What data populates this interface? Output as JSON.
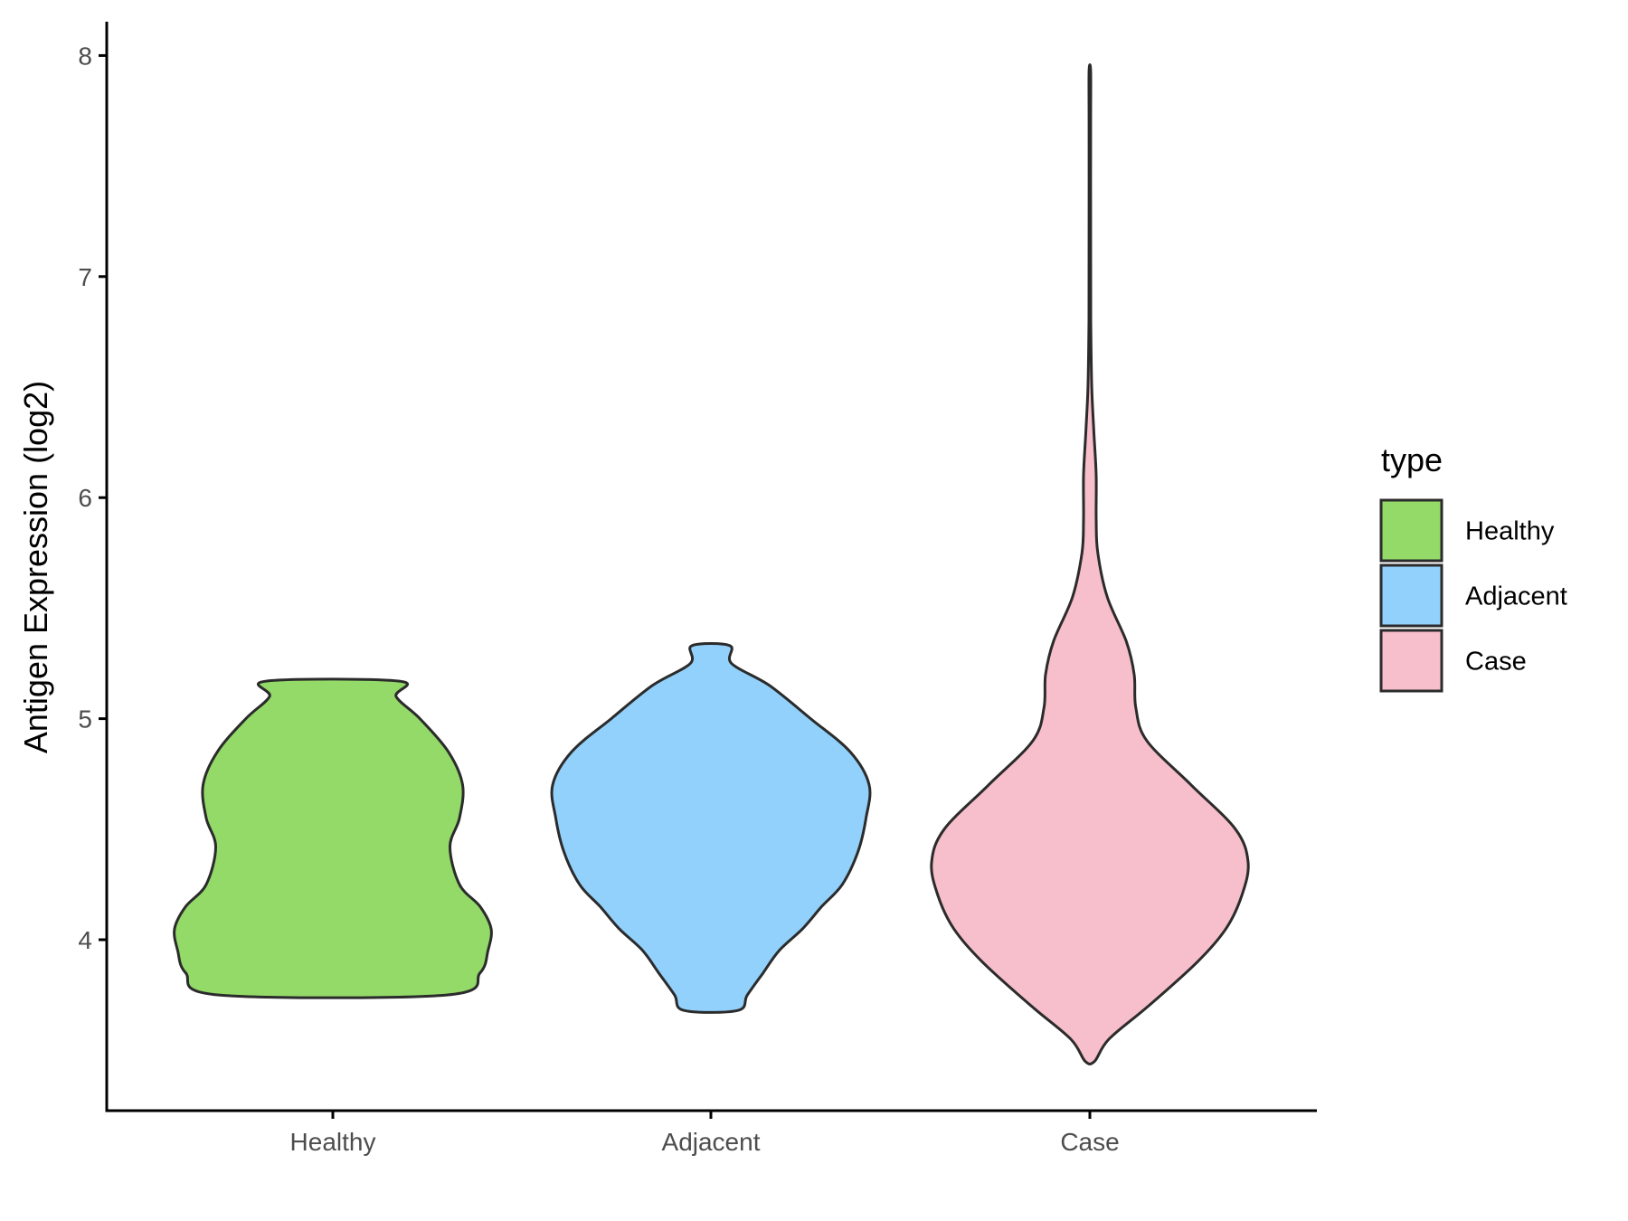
{
  "chart_data": {
    "type": "violin",
    "title": "",
    "xlabel": "",
    "ylabel": "Antigen Expression (log2)",
    "categories": [
      "Healthy",
      "Adjacent",
      "Case"
    ],
    "ylim": [
      3.3,
      8.15
    ],
    "yticks": [
      4,
      5,
      6,
      7,
      8
    ],
    "grid": false,
    "legend": {
      "title": "type",
      "position": "right",
      "entries": [
        "Healthy",
        "Adjacent",
        "Case"
      ]
    },
    "colors": {
      "Healthy": "#93DA69",
      "Adjacent": "#92D1FC",
      "Case": "#F7BFCB",
      "outline": "#2b2b2b",
      "axis": "#000000"
    },
    "series": [
      {
        "category": "Healthy",
        "min": 3.75,
        "max": 5.17,
        "density_profile": [
          [
            3.75,
            0.72
          ],
          [
            3.85,
            0.93
          ],
          [
            3.95,
            0.98
          ],
          [
            4.05,
            1.0
          ],
          [
            4.15,
            0.93
          ],
          [
            4.25,
            0.8
          ],
          [
            4.42,
            0.74
          ],
          [
            4.55,
            0.8
          ],
          [
            4.7,
            0.82
          ],
          [
            4.85,
            0.73
          ],
          [
            5.0,
            0.55
          ],
          [
            5.1,
            0.4
          ],
          [
            5.17,
            0.42
          ]
        ]
      },
      {
        "category": "Adjacent",
        "min": 3.68,
        "max": 5.33,
        "density_profile": [
          [
            3.68,
            0.17
          ],
          [
            3.75,
            0.23
          ],
          [
            3.85,
            0.33
          ],
          [
            3.95,
            0.43
          ],
          [
            4.05,
            0.58
          ],
          [
            4.15,
            0.7
          ],
          [
            4.25,
            0.83
          ],
          [
            4.4,
            0.93
          ],
          [
            4.55,
            0.98
          ],
          [
            4.7,
            1.0
          ],
          [
            4.85,
            0.88
          ],
          [
            5.0,
            0.63
          ],
          [
            5.15,
            0.37
          ],
          [
            5.25,
            0.13
          ],
          [
            5.33,
            0.12
          ]
        ]
      },
      {
        "category": "Case",
        "min": 3.45,
        "max": 7.93,
        "density_profile": [
          [
            3.45,
            0.03
          ],
          [
            3.55,
            0.12
          ],
          [
            3.7,
            0.37
          ],
          [
            3.9,
            0.68
          ],
          [
            4.05,
            0.86
          ],
          [
            4.2,
            0.96
          ],
          [
            4.35,
            1.0
          ],
          [
            4.5,
            0.92
          ],
          [
            4.7,
            0.64
          ],
          [
            4.9,
            0.36
          ],
          [
            5.05,
            0.29
          ],
          [
            5.2,
            0.28
          ],
          [
            5.35,
            0.23
          ],
          [
            5.55,
            0.11
          ],
          [
            5.75,
            0.05
          ],
          [
            5.9,
            0.04
          ],
          [
            6.1,
            0.04
          ],
          [
            6.3,
            0.025
          ],
          [
            6.5,
            0.012
          ],
          [
            6.8,
            0.006
          ],
          [
            7.2,
            0.005
          ],
          [
            7.7,
            0.005
          ],
          [
            7.93,
            0.005
          ]
        ]
      }
    ]
  }
}
